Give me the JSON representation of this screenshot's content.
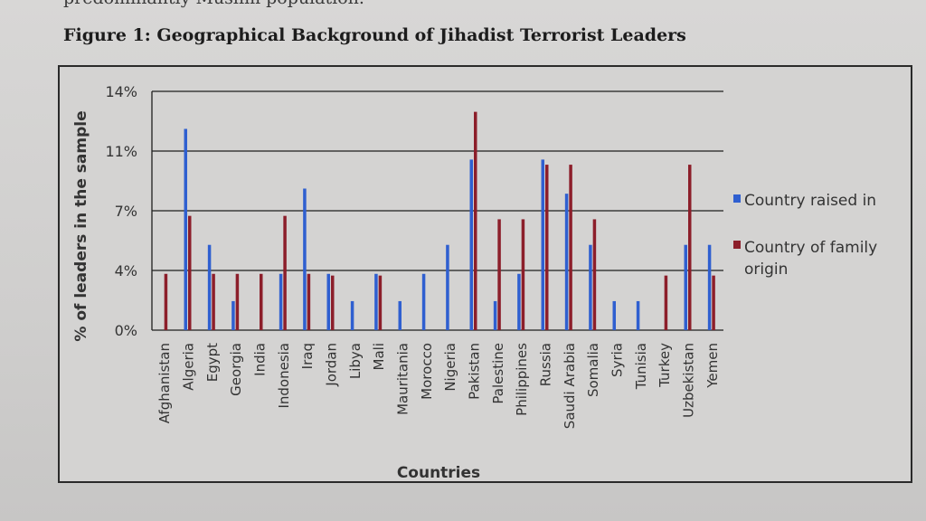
{
  "page": {
    "cut_text": "predominantly Muslim population.",
    "figure_title": "Figure 1: Geographical Background of Jihadist Terrorist Leaders"
  },
  "colors": {
    "raised": "#2f5fd0",
    "family": "#8c1e2a",
    "grid": "#1e1e1e",
    "text": "#333333"
  },
  "chart_data": {
    "type": "bar",
    "title": "Figure 1: Geographical Background of Jihadist Terrorist Leaders",
    "xlabel": "Countries",
    "ylabel": "% of leaders in the sample",
    "ylim": [
      0,
      14
    ],
    "yticks": [
      {
        "value": 0,
        "label": "0%"
      },
      {
        "value": 3.5,
        "label": "4%"
      },
      {
        "value": 7,
        "label": "7%"
      },
      {
        "value": 10.5,
        "label": "11%"
      },
      {
        "value": 14,
        "label": "14%"
      }
    ],
    "grid": true,
    "legend_position": "right",
    "categories": [
      "Afghanistan",
      "Algeria",
      "Egypt",
      "Georgia",
      "India",
      "Indonesia",
      "Iraq",
      "Jordan",
      "Libya",
      "Mali",
      "Mauritania",
      "Morocco",
      "Nigeria",
      "Pakistan",
      "Palestine",
      "Philippines",
      "Russia",
      "Saudi Arabia",
      "Somalia",
      "Syria",
      "Tunisia",
      "Turkey",
      "Uzbekistan",
      "Yemen"
    ],
    "series": [
      {
        "name": "Country raised in",
        "color": "#2f5fd0",
        "values": [
          0,
          11.8,
          5.0,
          1.7,
          0,
          3.3,
          8.3,
          3.3,
          1.7,
          3.3,
          1.7,
          3.3,
          5.0,
          10.0,
          1.7,
          3.3,
          10.0,
          8.0,
          5.0,
          1.7,
          1.7,
          0,
          5.0,
          5.0
        ]
      },
      {
        "name": "Country of family origin",
        "color": "#8c1e2a",
        "values": [
          3.3,
          6.7,
          3.3,
          3.3,
          3.3,
          6.7,
          3.3,
          3.2,
          0,
          3.2,
          0,
          0,
          0,
          12.8,
          6.5,
          6.5,
          9.7,
          9.7,
          6.5,
          0,
          0,
          3.2,
          9.7,
          3.2
        ]
      }
    ]
  }
}
